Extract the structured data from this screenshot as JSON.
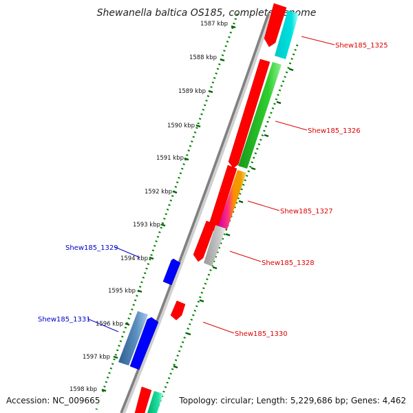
{
  "title": "Shewanella baltica OS185, complete genome",
  "ticks": [
    "1587 kbp",
    "1588 kbp",
    "1589 kbp",
    "1590 kbp",
    "1591 kbp",
    "1592 kbp",
    "1593 kbp",
    "1594 kbp",
    "1595 kbp",
    "1596 kbp",
    "1597 kbp",
    "1598 kbp"
  ],
  "genes_right": [
    {
      "name": "Shew185_1325",
      "color": "#dd0000"
    },
    {
      "name": "Shew185_1326",
      "color": "#dd0000"
    },
    {
      "name": "Shew185_1327",
      "color": "#dd0000"
    },
    {
      "name": "Shew185_1328",
      "color": "#dd0000"
    },
    {
      "name": "Shew185_1330",
      "color": "#dd0000"
    }
  ],
  "genes_left": [
    {
      "name": "Shew185_1329",
      "color": "#0000cc"
    },
    {
      "name": "Shew185_1331",
      "color": "#0000cc"
    }
  ],
  "footer": {
    "accession": "Accession: NC_009665",
    "summary": "Topology: circular; Length: 5,229,686 bp; Genes: 4,462"
  },
  "colors": {
    "backbone": "#808080",
    "forward_cds": "#ff0000",
    "reverse_cds": "#0000ff",
    "green_track": "#008000"
  }
}
